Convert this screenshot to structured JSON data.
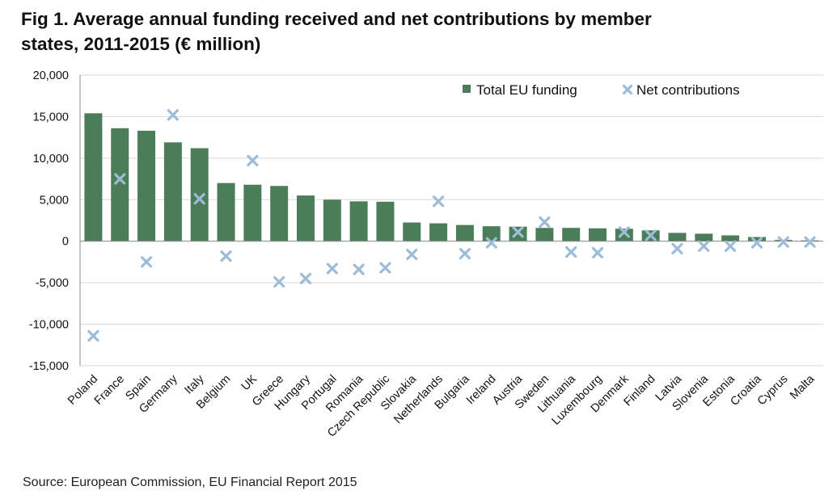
{
  "title": "Fig 1. Average annual funding received and net contributions by member states, 2011-2015 (€ million)",
  "source": "Source: European Commission, EU Financial Report 2015",
  "colors": {
    "bar": "#4c7d59",
    "marker": "#9dbcd8",
    "grid": "#d9d9d9",
    "axis": "#8c8c8c"
  },
  "chart_data": {
    "type": "bar",
    "categories": [
      "Poland",
      "France",
      "Spain",
      "Germany",
      "Italy",
      "Belgium",
      "UK",
      "Greece",
      "Hungary",
      "Portugal",
      "Romania",
      "Czech Republic",
      "Slovakia",
      "Netherlands",
      "Bulgaria",
      "Ireland",
      "Austria",
      "Sweden",
      "Lithuania",
      "Luxembourg",
      "Denmark",
      "Finland",
      "Latvia",
      "Slovenia",
      "Estonia",
      "Croatia",
      "Cyprus",
      "Malta"
    ],
    "series": [
      {
        "name": "Total EU funding",
        "type": "bar",
        "values": [
          15400,
          13600,
          13300,
          11900,
          11200,
          7000,
          6800,
          6650,
          5500,
          5000,
          4800,
          4750,
          2250,
          2150,
          1950,
          1800,
          1750,
          1600,
          1600,
          1550,
          1500,
          1300,
          1000,
          900,
          700,
          500,
          150,
          100
        ]
      },
      {
        "name": "Net contributions",
        "type": "scatter",
        "marker": "x",
        "values": [
          -11400,
          7500,
          -2500,
          15200,
          5100,
          -1800,
          9700,
          -4900,
          -4500,
          -3300,
          -3400,
          -3200,
          -1600,
          4800,
          -1500,
          -200,
          1100,
          2300,
          -1300,
          -1400,
          1100,
          700,
          -900,
          -600,
          -600,
          -200,
          -100,
          -100
        ]
      }
    ],
    "yticks": [
      "20,000",
      "15,000",
      "10,000",
      "5,000",
      "0",
      "-5,000",
      "-10,000",
      "-15,000"
    ],
    "ylim": [
      -15000,
      20000
    ],
    "grid": true,
    "legend_position": "top-right"
  }
}
